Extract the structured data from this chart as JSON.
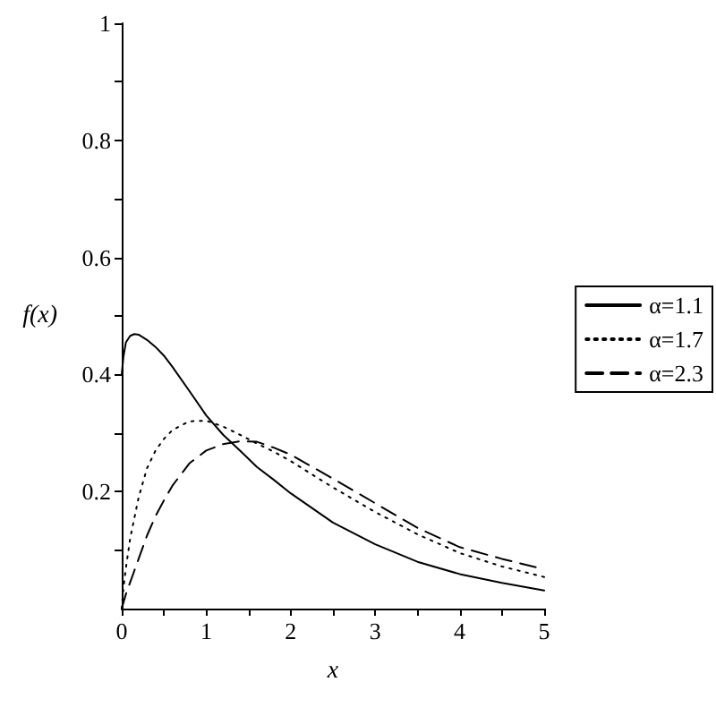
{
  "chart_data": {
    "type": "line",
    "xlabel": "x",
    "ylabel": "f(x)",
    "x": [
      0,
      0.02,
      0.05,
      0.1,
      0.15,
      0.2,
      0.3,
      0.4,
      0.5,
      0.6,
      0.8,
      1,
      1.2,
      1.4,
      1.6,
      1.8,
      2,
      2.5,
      3,
      3.5,
      4,
      4.5,
      5
    ],
    "series": [
      {
        "name": "α=1.1",
        "color": "#000000",
        "line_style": "solid",
        "values": [
          0.4,
          0.43,
          0.455,
          0.466,
          0.469,
          0.468,
          0.459,
          0.447,
          0.432,
          0.413,
          0.372,
          0.33,
          0.297,
          0.27,
          0.242,
          0.22,
          0.197,
          0.147,
          0.11,
          0.08,
          0.059,
          0.044,
          0.031
        ]
      },
      {
        "name": "α=1.7",
        "color": "#000000",
        "line_style": "dotted",
        "values": [
          0,
          0.035,
          0.07,
          0.12,
          0.155,
          0.19,
          0.24,
          0.27,
          0.29,
          0.305,
          0.32,
          0.321,
          0.311,
          0.297,
          0.282,
          0.268,
          0.252,
          0.207,
          0.165,
          0.127,
          0.095,
          0.072,
          0.054
        ]
      },
      {
        "name": "α=2.3",
        "color": "#000000",
        "line_style": "dashed",
        "values": [
          0,
          0.01,
          0.025,
          0.045,
          0.065,
          0.085,
          0.125,
          0.158,
          0.185,
          0.21,
          0.248,
          0.27,
          0.281,
          0.286,
          0.285,
          0.275,
          0.263,
          0.222,
          0.18,
          0.138,
          0.105,
          0.085,
          0.067
        ]
      }
    ],
    "xlim": [
      0,
      5
    ],
    "xticks": [
      0,
      {
        "value": 0.5,
        "label": null
      },
      1,
      {
        "value": 1.5,
        "label": null
      },
      2,
      {
        "value": 2.5,
        "label": null
      },
      3,
      {
        "value": 3.5,
        "label": null
      },
      4,
      {
        "value": 4.5,
        "label": null
      },
      5
    ],
    "ylim": [
      0,
      1
    ],
    "yticks": [
      {
        "value": 0.1,
        "label": null
      },
      0.2,
      {
        "value": 0.3,
        "label": null
      },
      0.4,
      {
        "value": 0.5,
        "label": null
      },
      0.6,
      {
        "value": 0.7,
        "label": null
      },
      0.8,
      {
        "value": 0.9,
        "label": null
      },
      1
    ],
    "grid": false,
    "legend": "right",
    "marker": "none"
  }
}
